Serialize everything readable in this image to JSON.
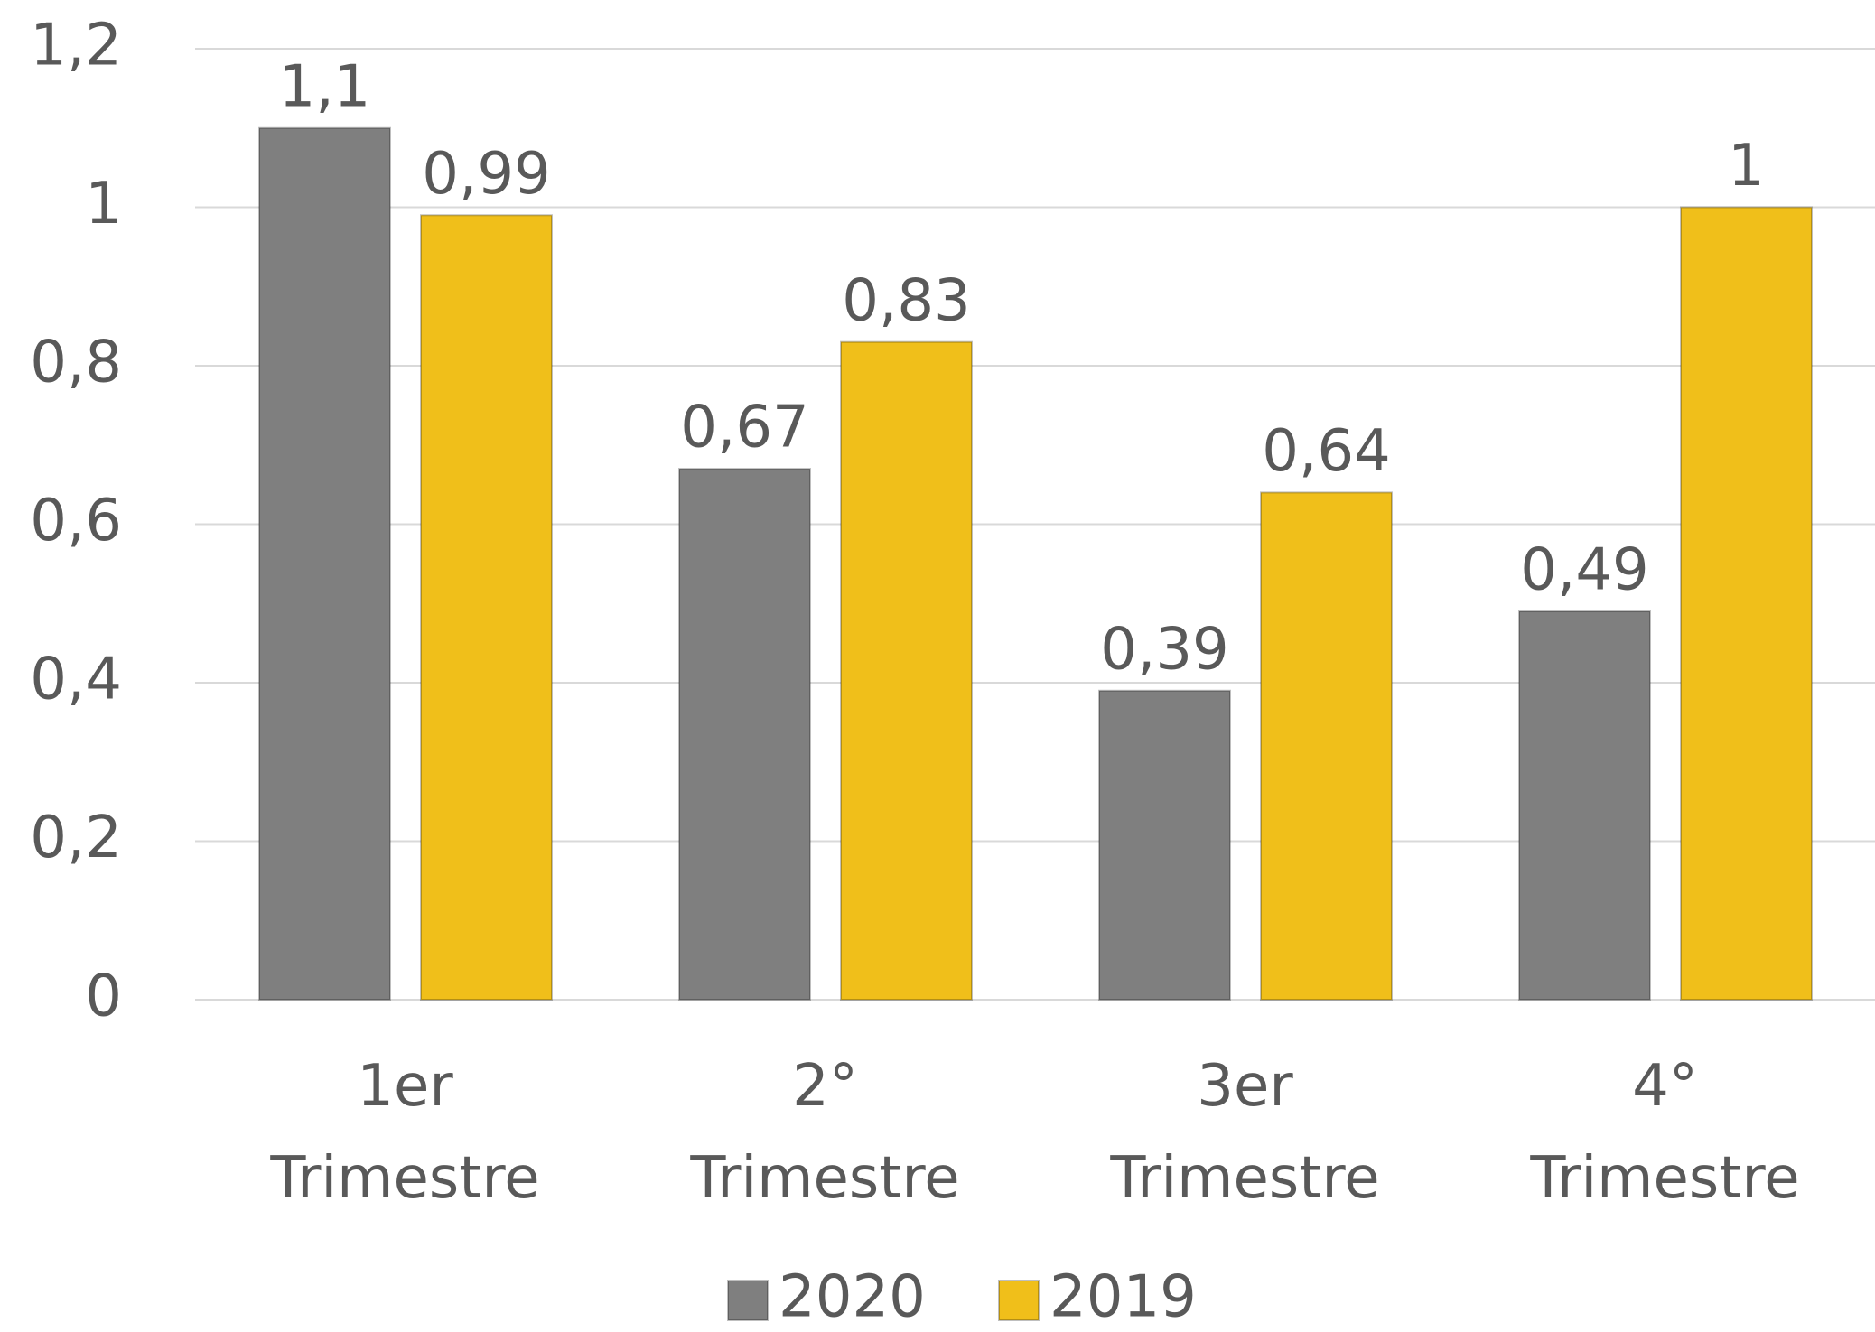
{
  "chart_data": {
    "type": "bar",
    "categories": [
      "1er Trimestre",
      "2° Trimestre",
      "3er Trimestre",
      "4° Trimestre"
    ],
    "series": [
      {
        "name": "2020",
        "color": "#7f7f7f",
        "values": [
          1.1,
          0.67,
          0.39,
          0.49
        ],
        "value_labels": [
          "1,1",
          "0,67",
          "0,39",
          "0,49"
        ]
      },
      {
        "name": "2019",
        "color": "#f0bf1a",
        "values": [
          0.99,
          0.83,
          0.64,
          1
        ],
        "value_labels": [
          "0,99",
          "0,83",
          "0,64",
          "1"
        ]
      }
    ],
    "ylim": [
      0,
      1.2
    ],
    "yticks": [
      0,
      {
        "value": 0.2,
        "label": "0,2"
      },
      {
        "value": 0.4,
        "label": "0,4"
      },
      {
        "value": 0.6,
        "label": "0,6"
      },
      {
        "value": 0.8,
        "label": "0,8"
      },
      1,
      {
        "value": 1.2,
        "label": "1,2"
      }
    ],
    "grid": true,
    "legend": "bottom"
  }
}
